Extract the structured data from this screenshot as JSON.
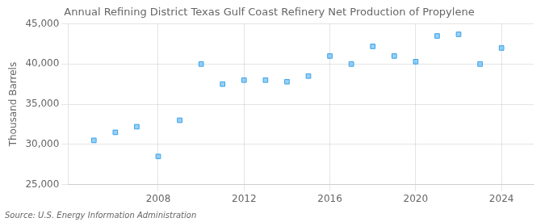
{
  "chart_data": {
    "type": "scatter",
    "title": "Annual Refining District Texas Gulf Coast Refinery Net Production of Propylene",
    "ylabel": "Thousand Barrels",
    "source": "Source: U.S. Energy Information Administration",
    "x": [
      2005,
      2006,
      2007,
      2008,
      2009,
      2010,
      2011,
      2012,
      2013,
      2014,
      2015,
      2016,
      2017,
      2018,
      2019,
      2020,
      2021,
      2022,
      2023,
      2024
    ],
    "values": [
      30500,
      31500,
      32200,
      28500,
      33000,
      40000,
      37500,
      38000,
      38000,
      37800,
      38500,
      41000,
      40000,
      42200,
      41000,
      40300,
      43500,
      43700,
      40000,
      42000
    ],
    "marker": "square",
    "xlim": [
      2003.8,
      2025.5
    ],
    "xticks": [
      2008,
      2012,
      2016,
      2020,
      2024
    ],
    "ylim": [
      25000,
      45000
    ],
    "yticks": [
      {
        "value": 25000,
        "label": "25,000"
      },
      {
        "value": 30000,
        "label": "30,000"
      },
      {
        "value": 35000,
        "label": "35,000"
      },
      {
        "value": 40000,
        "label": "40,000"
      },
      {
        "value": 45000,
        "label": "45,000"
      }
    ],
    "grid": true
  }
}
